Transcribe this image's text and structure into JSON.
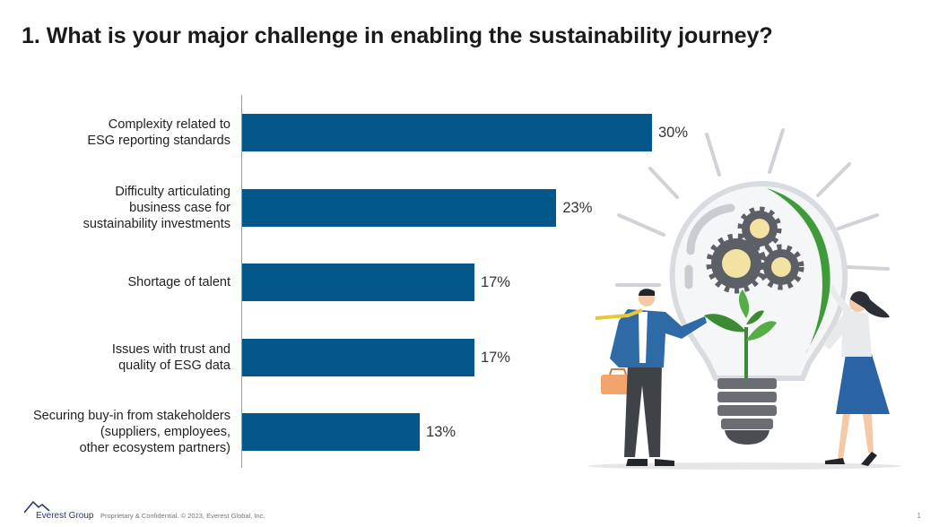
{
  "title": "1. What is your major challenge in enabling the sustainability journey?",
  "colors": {
    "bar": "#03578a"
  },
  "chart_data": {
    "type": "bar",
    "orientation": "horizontal",
    "categories": [
      "Complexity related to\nESG reporting standards",
      "Difficulty articulating\nbusiness case for\nsustainability investments",
      "Shortage of talent",
      "Issues with trust and\nquality of ESG data",
      "Securing buy-in from stakeholders\n(suppliers, employees,\nother ecosystem partners)"
    ],
    "values": [
      30,
      23,
      17,
      17,
      13
    ],
    "value_labels": [
      "30%",
      "23%",
      "17%",
      "17%",
      "13%"
    ],
    "unit": "%",
    "xlim": [
      0,
      30
    ],
    "grid": false,
    "legend": "none"
  },
  "illustration": {
    "icon": "lightbulb-with-plant-and-gears-businesspeople"
  },
  "footer": {
    "brand": "Everest Group",
    "legal": "Proprietary & Confidential. © 2023, Everest Global, Inc.",
    "page": "1"
  }
}
